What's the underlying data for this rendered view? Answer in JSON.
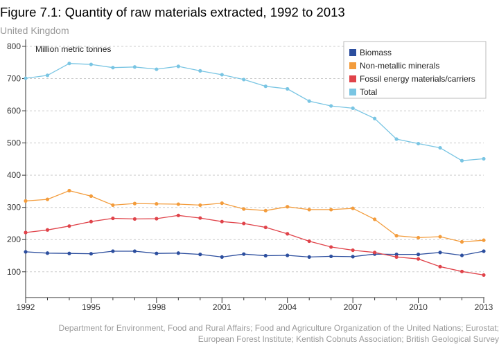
{
  "header": {
    "title": "Figure 7.1: Quantity of raw materials extracted, 1992 to 2013",
    "subtitle": "United Kingdom"
  },
  "footer": {
    "source_line1": "Department for Environment, Food and Rural Affairs; Food and Agriculture Organization of the United Nations; Eurostat;",
    "source_line2": "European Forest Institute; Kentish Cobnuts Association; British Geological Survey"
  },
  "chart_data": {
    "type": "line",
    "title": "Figure 7.1: Quantity of raw materials extracted, 1992 to 2013",
    "subtitle": "United Kingdom",
    "ylabel": "Million metric tonnes",
    "xlabel": "",
    "x": [
      1992,
      1993,
      1994,
      1995,
      1996,
      1997,
      1998,
      1999,
      2000,
      2001,
      2002,
      2003,
      2004,
      2005,
      2006,
      2007,
      2008,
      2009,
      2010,
      2011,
      2012,
      2013
    ],
    "xticks": [
      1992,
      1995,
      1998,
      2001,
      2004,
      2007,
      2010,
      2013
    ],
    "yticks": [
      100,
      200,
      300,
      400,
      500,
      600,
      700,
      800
    ],
    "xlim": [
      1992,
      2013
    ],
    "ylim": [
      20,
      800
    ],
    "grid": "horizontal dashed",
    "legend_position": "top-right",
    "series": [
      {
        "name": "Biomass",
        "color": "#2c4e9e",
        "values": [
          162,
          158,
          157,
          156,
          164,
          164,
          157,
          158,
          154,
          146,
          155,
          150,
          151,
          146,
          148,
          147,
          155,
          154,
          154,
          160,
          151,
          164
        ]
      },
      {
        "name": "Non-metallic minerals",
        "color": "#f39c3c",
        "values": [
          320,
          325,
          352,
          335,
          307,
          312,
          311,
          310,
          307,
          313,
          295,
          290,
          302,
          293,
          293,
          297,
          263,
          212,
          206,
          209,
          193,
          198
        ]
      },
      {
        "name": "Fossil energy materials/carriers",
        "color": "#e0434a",
        "values": [
          222,
          230,
          242,
          256,
          266,
          264,
          265,
          275,
          267,
          256,
          250,
          238,
          218,
          195,
          177,
          167,
          160,
          146,
          140,
          116,
          101,
          90
        ]
      },
      {
        "name": "Total",
        "color": "#79c5e3",
        "values": [
          701,
          710,
          747,
          744,
          734,
          736,
          729,
          738,
          724,
          712,
          697,
          676,
          668,
          630,
          615,
          608,
          576,
          512,
          498,
          485,
          445,
          451
        ]
      }
    ]
  }
}
